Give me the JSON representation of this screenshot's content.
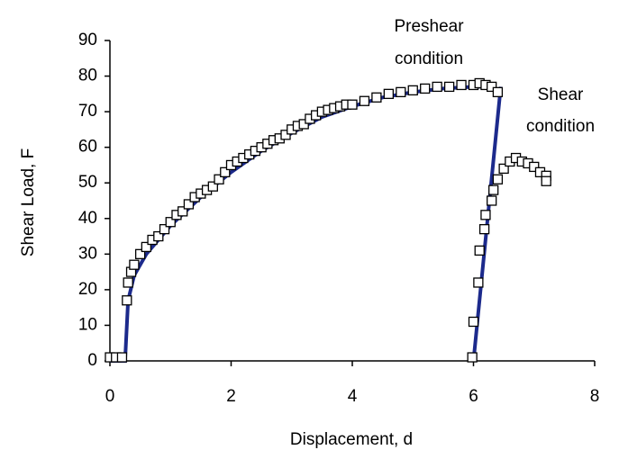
{
  "chart_data": {
    "type": "scatter",
    "x_label": "Displacement, d",
    "y_label": "Shear Load, F",
    "annotations": [
      "Preshear",
      "condition",
      "Shear",
      "condition"
    ],
    "xlim": [
      0,
      8
    ],
    "xticks": [
      0,
      2,
      4,
      6,
      8
    ],
    "ylim": [
      0,
      90
    ],
    "yticks": [
      0,
      10,
      20,
      30,
      40,
      50,
      60,
      70,
      80,
      90
    ],
    "grid": false,
    "series": [
      {
        "color": "#1c2a8c",
        "style": "line",
        "x": [
          0,
          0.25,
          0.3,
          0.4,
          0.6,
          1,
          1.5,
          2,
          2.5,
          3,
          3.5,
          4,
          4.5,
          5,
          5.5,
          6,
          6.3,
          null,
          6.0,
          6.45
        ],
        "values": [
          0,
          0,
          17,
          24,
          30,
          38,
          46,
          53,
          59,
          64,
          68.5,
          71.5,
          74,
          75.5,
          76.5,
          77,
          77,
          null,
          0,
          77
        ]
      },
      {
        "color": "#000000",
        "style": "square",
        "x": [
          0,
          0.1,
          0.2,
          0.28,
          0.3,
          0.35,
          0.4,
          0.5,
          0.6,
          0.7,
          0.8,
          0.9,
          1.0,
          1.1,
          1.2,
          1.3,
          1.4,
          1.5,
          1.6,
          1.7,
          1.8,
          1.9,
          2.0,
          2.1,
          2.2,
          2.3,
          2.4,
          2.5,
          2.6,
          2.7,
          2.8,
          2.9,
          3.0,
          3.1,
          3.2,
          3.3,
          3.4,
          3.5,
          3.6,
          3.7,
          3.8,
          3.9,
          4.0,
          4.2,
          4.4,
          4.6,
          4.8,
          5.0,
          5.2,
          5.4,
          5.6,
          5.8,
          6.0,
          6.1,
          6.2,
          6.3,
          6.4,
          5.98,
          6.0,
          6.08,
          6.1,
          6.18,
          6.2,
          6.3,
          6.33,
          6.4,
          6.5,
          6.6,
          6.7,
          6.8,
          6.9,
          7.0,
          7.1,
          7.2,
          7.2
        ],
        "values": [
          1,
          1,
          1,
          17,
          22,
          25,
          27,
          30,
          32,
          34,
          35,
          37,
          39,
          41,
          42,
          44,
          46,
          47,
          48,
          49,
          51,
          53,
          55,
          56,
          57,
          58,
          59,
          60,
          61,
          62,
          62.5,
          63.5,
          65,
          66,
          66.5,
          68,
          69,
          70,
          70.5,
          71,
          71.5,
          72,
          72,
          73,
          74,
          75,
          75.5,
          76,
          76.5,
          77,
          77,
          77.5,
          77.5,
          78,
          77.5,
          77,
          75.5,
          1,
          11,
          22,
          31,
          37,
          41,
          45,
          48,
          51,
          54,
          56,
          57,
          56,
          55.5,
          54.5,
          53,
          52,
          50.5
        ]
      }
    ]
  }
}
